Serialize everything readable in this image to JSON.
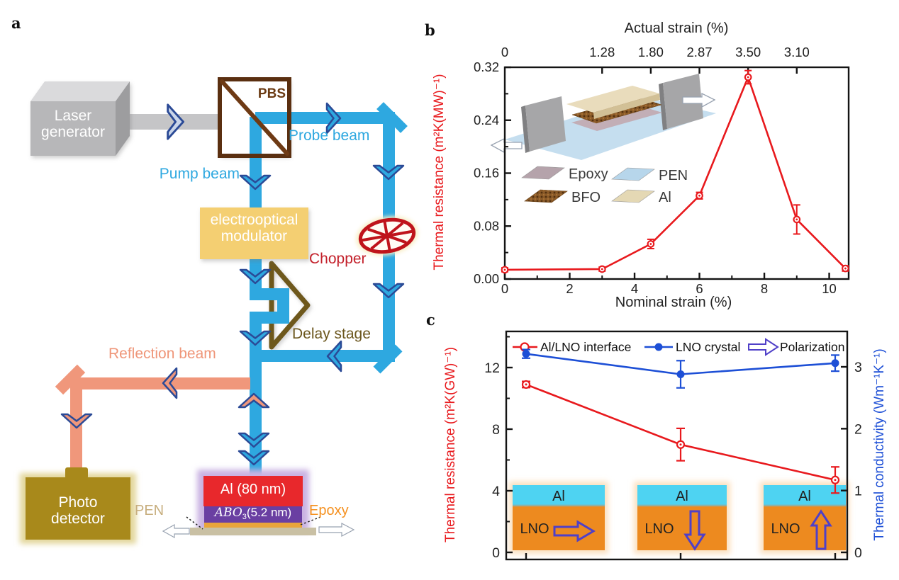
{
  "figure": {
    "panel_a_label": "a",
    "panel_b_label": "b",
    "panel_c_label": "c"
  },
  "panel_a": {
    "laser_line1": "Laser",
    "laser_line2": "generator",
    "pbs": "PBS",
    "pump_beam": "Pump beam",
    "probe_beam": "Probe beam",
    "eom_line1": "electrooptical",
    "eom_line2": "modulator",
    "chopper": "Chopper",
    "delay_stage": "Delay stage",
    "reflection_beam": "Reflection beam",
    "photo_line1": "Photo",
    "photo_line2": "detector",
    "al_layer": "Al (80 nm)",
    "abo3_italic": "ABO",
    "abo3_sub": "3",
    "abo3_rest": "(5.2 nm)",
    "pen_label": "PEN",
    "epoxy_label": "Epoxy",
    "colors": {
      "beam_blue": "#2ea8e0",
      "beam_salmon": "#f0977b",
      "eom_yellow": "#f4cf72",
      "chopper_red": "#bf141b",
      "delay_brown": "#6e591e",
      "detector_gold": "#a8891b",
      "al_red": "#e8282c",
      "abo3_purple": "#6a3fa2",
      "epoxy_gold": "#e9a43b",
      "pen_tan": "#c9c0a4"
    }
  },
  "chart_data": [
    {
      "id": "b",
      "type": "line",
      "top_axis": {
        "label": "Actual strain (%)",
        "ticks": [
          {
            "x": 0,
            "label": "0"
          },
          {
            "x": 3,
            "label": "1.28"
          },
          {
            "x": 4.5,
            "label": "1.80"
          },
          {
            "x": 6,
            "label": "2.87"
          },
          {
            "x": 7.5,
            "label": "3.50"
          },
          {
            "x": 9,
            "label": "3.10"
          }
        ]
      },
      "xlabel": "Nominal strain (%)",
      "ylabel": "Thermal resistance (m²K(MW)⁻¹)",
      "xlim": [
        0,
        10.6
      ],
      "ylim": [
        0,
        0.32
      ],
      "x_major_ticks": [
        0,
        2,
        4,
        6,
        8,
        10
      ],
      "x_minor_ticks": [
        1,
        3,
        5,
        7,
        9
      ],
      "y_major_ticks": [
        0,
        0.08,
        0.16,
        0.24,
        0.32
      ],
      "y_major_labels": [
        "0.00",
        "0.08",
        "0.16",
        "0.24",
        "0.32"
      ],
      "y_minor_ticks": [
        0.04,
        0.12,
        0.2,
        0.28
      ],
      "grid": false,
      "series": [
        {
          "name": "thermal-resistance-vs-strain",
          "color": "#e8191d",
          "marker": "open-circle",
          "x": [
            0,
            3,
            4.5,
            6,
            7.5,
            9,
            10.5
          ],
          "y": [
            0.014,
            0.015,
            0.053,
            0.126,
            0.305,
            0.09,
            0.016
          ],
          "yerr": [
            0.003,
            0.003,
            0.007,
            0.005,
            0.01,
            0.022,
            0.004
          ]
        }
      ],
      "inset_legend": [
        {
          "label": "Epoxy",
          "color": "#b5a3ab"
        },
        {
          "label": "PEN",
          "color": "#b7d6eb"
        },
        {
          "label": "BFO",
          "color": "#8a5a28"
        },
        {
          "label": "Al",
          "color": "#e4d8b4"
        }
      ]
    },
    {
      "id": "c",
      "type": "line",
      "ylabel_left": "Thermal resistance (m²K(GW)⁻¹)",
      "ylabel_right": "Thermal conductivity (Wm⁻¹K⁻¹)",
      "ylim_left": [
        0,
        14.3
      ],
      "ylim_right": [
        0,
        3.58
      ],
      "y_left_ticks": [
        0,
        4,
        8,
        12
      ],
      "y_left_minor_ticks": [
        2,
        6,
        10,
        14
      ],
      "y_right_ticks": [
        0,
        1,
        2,
        3
      ],
      "grid": false,
      "legend": [
        {
          "label": "Al/LNO interface",
          "color": "#e8191d",
          "marker": "open-circle"
        },
        {
          "label": "LNO crystal",
          "color": "#1d4fd6",
          "marker": "filled-circle"
        },
        {
          "label": "Polarization",
          "color": "#5040c8",
          "marker": "open-arrow"
        }
      ],
      "x_positions": [
        1,
        2,
        3
      ],
      "series": [
        {
          "name": "Al/LNO interface",
          "axis": "left",
          "color": "#e8191d",
          "marker": "open-circle",
          "y": [
            10.9,
            7.0,
            4.7
          ],
          "yerr": [
            0.2,
            1.05,
            0.85
          ]
        },
        {
          "name": "LNO crystal",
          "axis": "right",
          "color": "#1d4fd6",
          "marker": "filled-circle",
          "y": [
            3.21,
            2.88,
            3.06
          ],
          "yerr": [
            0.07,
            0.22,
            0.13
          ]
        }
      ],
      "insets": [
        {
          "top": "Al",
          "bottom": "LNO",
          "arrow": "right"
        },
        {
          "top": "Al",
          "bottom": "LNO",
          "arrow": "down"
        },
        {
          "top": "Al",
          "bottom": "LNO",
          "arrow": "up"
        }
      ]
    }
  ]
}
